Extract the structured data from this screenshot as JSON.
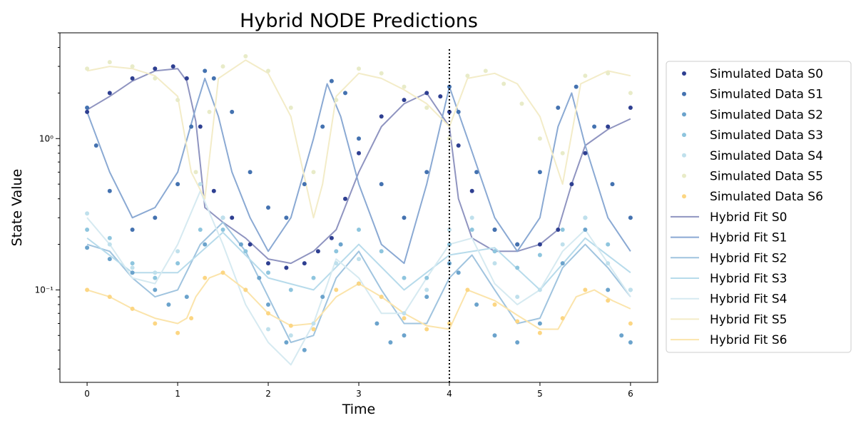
{
  "chart_data": {
    "type": "line",
    "title": "Hybrid NODE Predictions",
    "xlabel": "Time",
    "ylabel": "State Value",
    "xlim": [
      -0.3,
      6.3
    ],
    "ylim": [
      0.0245,
      5.0
    ],
    "yscale": "log",
    "x_ticks": [
      {
        "value": 0,
        "label": "0"
      },
      {
        "value": 1,
        "label": "1"
      },
      {
        "value": 2,
        "label": "2"
      },
      {
        "value": 3,
        "label": "3"
      },
      {
        "value": 4,
        "label": "4"
      },
      {
        "value": 5,
        "label": "5"
      },
      {
        "value": 6,
        "label": "6"
      }
    ],
    "y_ticks": [
      {
        "value": 0.1,
        "label": "10⁻¹"
      },
      {
        "value": 1,
        "label": "10⁰"
      }
    ],
    "vline": {
      "x": 4,
      "style": "dotted",
      "color": "#000000"
    },
    "grid": false,
    "legend_position": "outside right",
    "series": [
      {
        "name": "Simulated Data S0",
        "kind": "scatter",
        "color": "#2e3f91",
        "x": [
          0.0,
          0.25,
          0.5,
          0.75,
          0.95,
          1.1,
          1.25,
          1.4,
          1.6,
          1.8,
          2.0,
          2.2,
          2.4,
          2.55,
          2.7,
          2.85,
          3.0,
          3.25,
          3.5,
          3.75,
          3.9,
          4.0,
          4.1,
          4.25,
          4.5,
          4.75,
          5.0,
          5.2,
          5.35,
          5.5,
          5.75,
          6.0
        ],
        "y": [
          1.5,
          2.0,
          2.5,
          2.9,
          3.0,
          2.5,
          1.2,
          0.45,
          0.3,
          0.2,
          0.15,
          0.14,
          0.15,
          0.18,
          0.22,
          0.4,
          0.8,
          1.4,
          1.8,
          2.0,
          1.9,
          1.5,
          0.9,
          0.45,
          0.25,
          0.2,
          0.2,
          0.25,
          0.5,
          0.8,
          1.2,
          1.6
        ]
      },
      {
        "name": "Simulated Data S1",
        "kind": "scatter",
        "color": "#4472b0",
        "x": [
          0.0,
          0.1,
          0.25,
          0.5,
          0.75,
          1.0,
          1.15,
          1.3,
          1.4,
          1.6,
          1.8,
          2.0,
          2.2,
          2.4,
          2.6,
          2.7,
          2.85,
          3.0,
          3.25,
          3.5,
          3.75,
          4.0,
          4.1,
          4.3,
          4.5,
          4.75,
          5.0,
          5.2,
          5.4,
          5.6,
          5.8,
          6.0
        ],
        "y": [
          1.6,
          0.9,
          0.45,
          0.25,
          0.3,
          0.5,
          1.2,
          2.8,
          2.5,
          1.5,
          0.6,
          0.35,
          0.3,
          0.5,
          1.2,
          2.4,
          2.0,
          1.0,
          0.5,
          0.3,
          0.6,
          2.2,
          1.5,
          0.6,
          0.25,
          0.2,
          0.6,
          1.6,
          2.2,
          1.2,
          0.5,
          0.3
        ]
      },
      {
        "name": "Simulated Data S2",
        "kind": "scatter",
        "color": "#6ba3cc",
        "x": [
          0.0,
          0.25,
          0.5,
          0.75,
          0.9,
          1.1,
          1.3,
          1.5,
          1.7,
          1.9,
          2.0,
          2.2,
          2.4,
          2.6,
          2.8,
          3.0,
          3.2,
          3.35,
          3.5,
          3.75,
          4.0,
          4.1,
          4.3,
          4.5,
          4.75,
          5.0,
          5.25,
          5.5,
          5.75,
          5.9,
          6.0
        ],
        "y": [
          0.19,
          0.16,
          0.13,
          0.1,
          0.08,
          0.09,
          0.2,
          0.3,
          0.2,
          0.12,
          0.08,
          0.045,
          0.04,
          0.09,
          0.2,
          0.11,
          0.06,
          0.045,
          0.05,
          0.09,
          0.15,
          0.13,
          0.08,
          0.05,
          0.045,
          0.06,
          0.15,
          0.25,
          0.1,
          0.05,
          0.045
        ]
      },
      {
        "name": "Simulated Data S3",
        "kind": "scatter",
        "color": "#8ec5de",
        "x": [
          0.0,
          0.25,
          0.5,
          0.75,
          1.0,
          1.25,
          1.5,
          1.75,
          2.0,
          2.25,
          2.5,
          2.75,
          3.0,
          3.25,
          3.5,
          3.75,
          4.0,
          4.25,
          4.5,
          4.75,
          5.0,
          5.25,
          5.5,
          5.75,
          6.0
        ],
        "y": [
          0.25,
          0.22,
          0.15,
          0.12,
          0.15,
          0.25,
          0.25,
          0.18,
          0.13,
          0.1,
          0.12,
          0.18,
          0.25,
          0.18,
          0.12,
          0.12,
          0.2,
          0.25,
          0.18,
          0.14,
          0.17,
          0.25,
          0.3,
          0.2,
          0.1
        ]
      },
      {
        "name": "Simulated Data S4",
        "kind": "scatter",
        "color": "#bfe0ec",
        "x": [
          0.0,
          0.25,
          0.5,
          0.75,
          1.0,
          1.25,
          1.5,
          1.75,
          2.0,
          2.25,
          2.5,
          2.75,
          3.0,
          3.25,
          3.5,
          3.75,
          4.0,
          4.25,
          4.5,
          4.75,
          5.0,
          5.25,
          5.5,
          5.75,
          6.0
        ],
        "y": [
          0.32,
          0.2,
          0.14,
          0.13,
          0.18,
          0.5,
          0.3,
          0.1,
          0.055,
          0.05,
          0.06,
          0.15,
          0.16,
          0.09,
          0.07,
          0.1,
          0.25,
          0.3,
          0.15,
          0.09,
          0.1,
          0.2,
          0.3,
          0.15,
          0.1
        ]
      },
      {
        "name": "Simulated Data S5",
        "kind": "scatter",
        "color": "#e8ebc8",
        "x": [
          0.0,
          0.25,
          0.5,
          0.75,
          1.0,
          1.2,
          1.35,
          1.5,
          1.75,
          2.0,
          2.25,
          2.5,
          2.75,
          3.0,
          3.25,
          3.5,
          3.75,
          4.0,
          4.2,
          4.4,
          4.6,
          4.8,
          5.0,
          5.25,
          5.5,
          5.75,
          6.0
        ],
        "y": [
          2.9,
          3.2,
          3.0,
          2.5,
          1.8,
          0.6,
          1.5,
          3.0,
          3.5,
          2.8,
          1.6,
          0.6,
          1.8,
          2.9,
          2.7,
          2.2,
          1.6,
          1.0,
          2.6,
          2.8,
          2.3,
          1.7,
          1.0,
          0.8,
          2.6,
          2.7,
          2.0
        ]
      },
      {
        "name": "Simulated Data S6",
        "kind": "scatter",
        "color": "#fcd683",
        "x": [
          0.0,
          0.25,
          0.5,
          0.75,
          1.0,
          1.15,
          1.3,
          1.5,
          1.75,
          2.0,
          2.25,
          2.5,
          2.75,
          3.0,
          3.25,
          3.5,
          3.75,
          4.0,
          4.2,
          4.5,
          4.75,
          5.0,
          5.25,
          5.5,
          5.75,
          6.0
        ],
        "y": [
          0.1,
          0.09,
          0.075,
          0.06,
          0.052,
          0.065,
          0.12,
          0.13,
          0.1,
          0.07,
          0.058,
          0.055,
          0.1,
          0.11,
          0.09,
          0.065,
          0.055,
          0.06,
          0.1,
          0.08,
          0.062,
          0.052,
          0.065,
          0.1,
          0.085,
          0.06
        ]
      },
      {
        "name": "Hybrid Fit S0",
        "kind": "line",
        "color": "#8f94c0",
        "x": [
          0.0,
          0.25,
          0.5,
          0.75,
          1.0,
          1.1,
          1.2,
          1.3,
          1.5,
          1.75,
          2.0,
          2.25,
          2.5,
          2.75,
          3.0,
          3.25,
          3.5,
          3.75,
          4.0,
          4.1,
          4.25,
          4.5,
          4.75,
          5.0,
          5.2,
          5.35,
          5.5,
          5.75,
          6.0
        ],
        "y": [
          1.55,
          1.9,
          2.4,
          2.8,
          2.9,
          2.4,
          1.3,
          0.35,
          0.28,
          0.22,
          0.16,
          0.15,
          0.18,
          0.25,
          0.6,
          1.2,
          1.7,
          2.0,
          1.2,
          0.4,
          0.22,
          0.18,
          0.18,
          0.2,
          0.25,
          0.5,
          0.9,
          1.15,
          1.35
        ]
      },
      {
        "name": "Hybrid Fit S1",
        "kind": "line",
        "color": "#8aa9d3",
        "x": [
          0.0,
          0.25,
          0.5,
          0.75,
          1.0,
          1.2,
          1.3,
          1.45,
          1.6,
          1.8,
          2.0,
          2.25,
          2.5,
          2.65,
          2.8,
          3.0,
          3.25,
          3.5,
          3.75,
          4.0,
          4.2,
          4.5,
          4.75,
          5.0,
          5.2,
          5.35,
          5.5,
          5.75,
          6.0
        ],
        "y": [
          1.5,
          0.6,
          0.3,
          0.35,
          0.6,
          1.6,
          2.5,
          1.4,
          0.6,
          0.3,
          0.18,
          0.3,
          1.0,
          2.3,
          1.4,
          0.5,
          0.2,
          0.15,
          0.5,
          2.2,
          1.0,
          0.3,
          0.18,
          0.3,
          1.2,
          2.0,
          0.9,
          0.3,
          0.18
        ]
      },
      {
        "name": "Hybrid Fit S2",
        "kind": "line",
        "color": "#a0c4df",
        "x": [
          0.0,
          0.25,
          0.5,
          0.75,
          1.0,
          1.25,
          1.5,
          1.75,
          2.0,
          2.25,
          2.5,
          2.75,
          3.0,
          3.25,
          3.5,
          3.75,
          4.0,
          4.25,
          4.5,
          4.75,
          5.0,
          5.25,
          5.5,
          5.75,
          6.0
        ],
        "y": [
          0.2,
          0.18,
          0.12,
          0.09,
          0.1,
          0.2,
          0.28,
          0.18,
          0.09,
          0.045,
          0.05,
          0.12,
          0.18,
          0.1,
          0.06,
          0.06,
          0.12,
          0.17,
          0.1,
          0.06,
          0.065,
          0.14,
          0.2,
          0.14,
          0.09
        ]
      },
      {
        "name": "Hybrid Fit S3",
        "kind": "line",
        "color": "#b7dbeb",
        "x": [
          0.0,
          0.5,
          1.0,
          1.5,
          2.0,
          2.5,
          3.0,
          3.5,
          4.0,
          4.5,
          5.0,
          5.5,
          6.0
        ],
        "y": [
          0.22,
          0.13,
          0.13,
          0.24,
          0.12,
          0.1,
          0.2,
          0.1,
          0.17,
          0.19,
          0.1,
          0.22,
          0.13
        ]
      },
      {
        "name": "Hybrid Fit S4",
        "kind": "line",
        "color": "#d6eaf1",
        "x": [
          0.0,
          0.25,
          0.5,
          0.75,
          1.0,
          1.25,
          1.5,
          1.75,
          2.0,
          2.25,
          2.5,
          2.75,
          3.0,
          3.25,
          3.5,
          3.75,
          4.0,
          4.25,
          4.5,
          4.75,
          5.0,
          5.25,
          5.5,
          5.75,
          6.0
        ],
        "y": [
          0.3,
          0.2,
          0.12,
          0.11,
          0.2,
          0.45,
          0.2,
          0.08,
          0.045,
          0.032,
          0.06,
          0.16,
          0.12,
          0.07,
          0.07,
          0.12,
          0.2,
          0.22,
          0.11,
          0.08,
          0.1,
          0.18,
          0.25,
          0.15,
          0.09
        ]
      },
      {
        "name": "Hybrid Fit S5",
        "kind": "line",
        "color": "#f3ecc8",
        "x": [
          0.0,
          0.25,
          0.5,
          0.75,
          1.0,
          1.15,
          1.3,
          1.45,
          1.75,
          2.0,
          2.25,
          2.5,
          2.6,
          2.75,
          3.0,
          3.25,
          3.5,
          3.75,
          4.0,
          4.2,
          4.5,
          4.75,
          5.0,
          5.25,
          5.45,
          5.75,
          6.0
        ],
        "y": [
          2.8,
          3.0,
          2.9,
          2.6,
          1.9,
          0.6,
          0.4,
          2.5,
          3.3,
          2.7,
          1.4,
          0.3,
          0.5,
          1.9,
          2.7,
          2.5,
          2.1,
          1.7,
          1.2,
          2.5,
          2.7,
          2.3,
          1.4,
          0.5,
          2.3,
          2.8,
          2.6
        ]
      },
      {
        "name": "Hybrid Fit S6",
        "kind": "line",
        "color": "#fbe4ab",
        "x": [
          0.0,
          0.25,
          0.5,
          0.75,
          1.0,
          1.1,
          1.2,
          1.35,
          1.5,
          1.75,
          2.0,
          2.25,
          2.5,
          2.75,
          3.0,
          3.25,
          3.5,
          3.75,
          4.0,
          4.2,
          4.5,
          4.75,
          5.0,
          5.2,
          5.4,
          5.6,
          5.8,
          6.0
        ],
        "y": [
          0.1,
          0.09,
          0.075,
          0.065,
          0.06,
          0.065,
          0.09,
          0.12,
          0.13,
          0.1,
          0.07,
          0.058,
          0.06,
          0.09,
          0.11,
          0.09,
          0.07,
          0.058,
          0.055,
          0.1,
          0.085,
          0.068,
          0.055,
          0.055,
          0.09,
          0.1,
          0.085,
          0.075
        ]
      }
    ]
  }
}
